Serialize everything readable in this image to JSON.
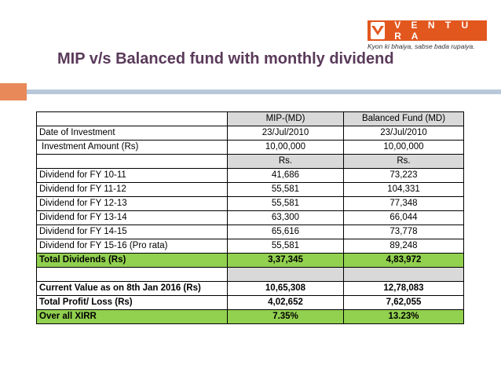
{
  "logo": {
    "brand": "V E N T U R A",
    "tagline": "Kyon ki bhaiya, sabse bada rupaiya.",
    "brand_color": "#e2571e"
  },
  "title": "MIP v/s Balanced fund with monthly dividend",
  "table": {
    "header": {
      "label": "",
      "mip": "MIP-(MD)",
      "balanced": "Balanced Fund (MD)"
    },
    "rows": [
      {
        "label": "Date of Investment",
        "mip": "23/Jul/2010",
        "balanced": "23/Jul/2010"
      },
      {
        "label": "Investment Amount (Rs)",
        "mip": "10,00,000",
        "balanced": "10,00,000"
      },
      {
        "label": "",
        "mip": "Rs.",
        "balanced": "Rs."
      },
      {
        "label": "Dividend for FY 10-11",
        "mip": "41,686",
        "balanced": "73,223"
      },
      {
        "label": "Dividend for FY 11-12",
        "mip": "55,581",
        "balanced": "104,331"
      },
      {
        "label": "Dividend for FY 12-13",
        "mip": "55,581",
        "balanced": "77,348"
      },
      {
        "label": "Dividend for FY 13-14",
        "mip": "63,300",
        "balanced": "66,044"
      },
      {
        "label": "Dividend for FY 14-15",
        "mip": "65,616",
        "balanced": "73,778"
      },
      {
        "label": "Dividend for FY  15-16 (Pro rata)",
        "mip": "55,581",
        "balanced": "89,248"
      },
      {
        "label": "Total Dividends (Rs)",
        "mip": "3,37,345",
        "balanced": "4,83,972"
      },
      {
        "label": "",
        "mip": "",
        "balanced": ""
      },
      {
        "label": "Current Value as on 8th Jan 2016 (Rs)",
        "mip": "10,65,308",
        "balanced": "12,78,083"
      },
      {
        "label": "Total Profit/ Loss (Rs)",
        "mip": "4,02,652",
        "balanced": "7,62,055"
      },
      {
        "label": "Over all XIRR",
        "mip": "7.35%",
        "balanced": "13.23%"
      }
    ]
  },
  "colors": {
    "title": "#5a3a5a",
    "highlight_green": "#92d050",
    "header_gray": "#d9d9d9",
    "accent_orange": "#e8895a",
    "accent_blue": "#b8c8da"
  }
}
